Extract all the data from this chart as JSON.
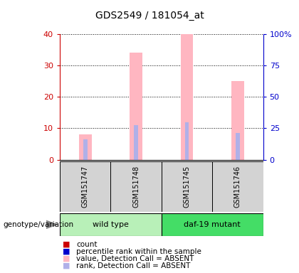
{
  "title": "GDS2549 / 181054_at",
  "samples": [
    "GSM151747",
    "GSM151748",
    "GSM151745",
    "GSM151746"
  ],
  "value_absent": [
    8,
    34,
    40,
    25
  ],
  "rank_absent": [
    6.5,
    11,
    12,
    8.5
  ],
  "ylim_left": [
    0,
    40
  ],
  "ylim_right": [
    0,
    100
  ],
  "yticks_left": [
    0,
    10,
    20,
    30,
    40
  ],
  "yticks_right": [
    0,
    25,
    50,
    75,
    100
  ],
  "ytick_labels_right": [
    "0",
    "25",
    "50",
    "75",
    "100%"
  ],
  "color_value_absent": "#ffb6c1",
  "color_rank_absent": "#b0b0e8",
  "color_count": "#cc0000",
  "color_percentile": "#0000cc",
  "bar_width": 0.25,
  "rank_bar_width": 0.08,
  "legend_items": [
    {
      "color": "#cc0000",
      "label": "count"
    },
    {
      "color": "#0000cc",
      "label": "percentile rank within the sample"
    },
    {
      "color": "#ffb6c1",
      "label": "value, Detection Call = ABSENT"
    },
    {
      "color": "#b0b0e8",
      "label": "rank, Detection Call = ABSENT"
    }
  ],
  "group_label": "genotype/variation",
  "wt_color": "#b8f0b8",
  "daf_color": "#44dd66",
  "sample_bg_color": "#d3d3d3",
  "title_fontsize": 10,
  "tick_fontsize": 8,
  "sample_fontsize": 7,
  "group_fontsize": 8,
  "legend_fontsize": 7.5
}
